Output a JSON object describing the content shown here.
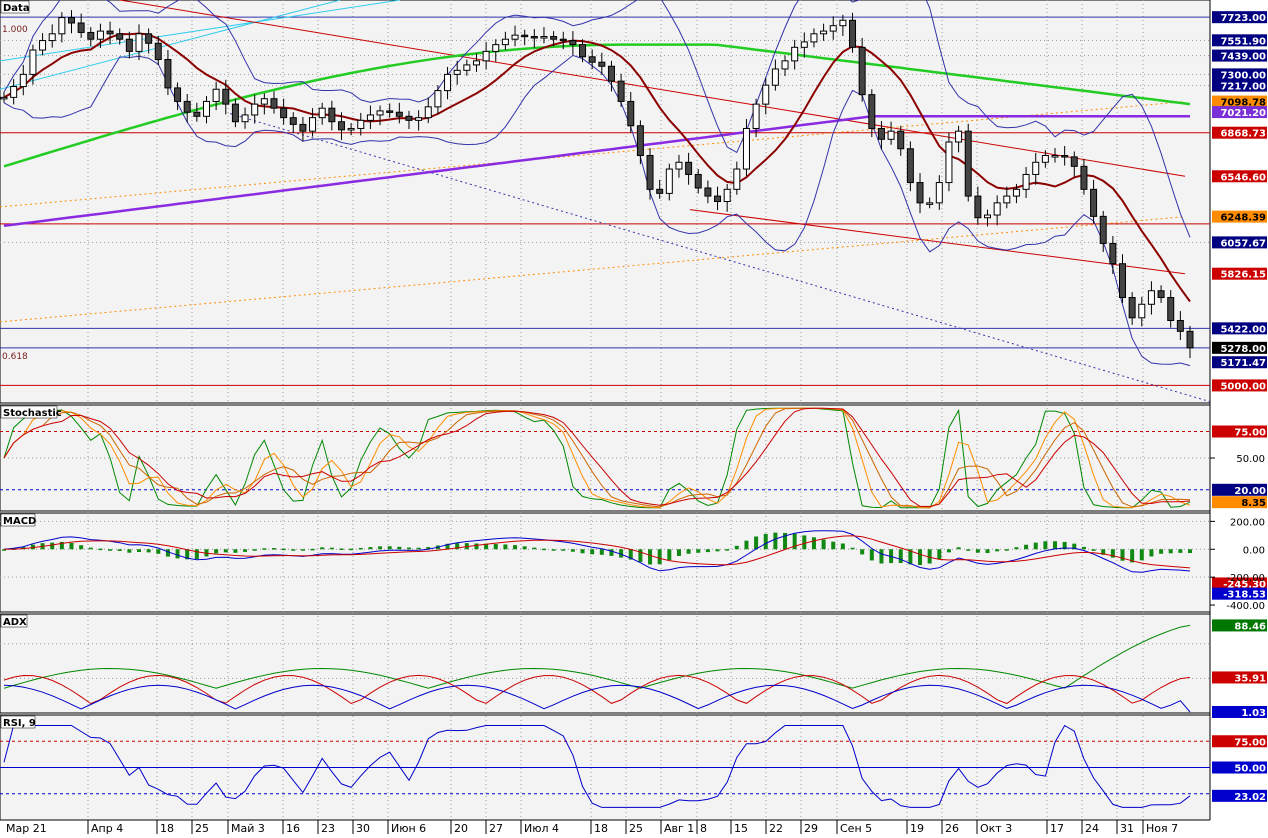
{
  "panels": {
    "price": {
      "label": "Data",
      "fib_top": "1.000",
      "fib_bottom": "0.618",
      "ylim": [
        4870,
        7850
      ],
      "tags": [
        {
          "text": "7723.00",
          "value": 7723,
          "bg": "#000080",
          "fg": "#ffffff"
        },
        {
          "text": "7551.90",
          "value": 7551.9,
          "bg": "#000080",
          "fg": "#ffffff"
        },
        {
          "text": "7439.00",
          "value": 7439,
          "bg": "#000080",
          "fg": "#ffffff"
        },
        {
          "text": "7300.00",
          "value": 7300,
          "bg": "#000080",
          "fg": "#ffffff"
        },
        {
          "text": "7217.00",
          "value": 7217,
          "bg": "#000080",
          "fg": "#ffffff"
        },
        {
          "text": "7098.78",
          "value": 7098.78,
          "bg": "#ff8c00",
          "fg": "#000000"
        },
        {
          "text": "7021.20",
          "value": 7021.2,
          "bg": "#7b2fd6",
          "fg": "#ffffff"
        },
        {
          "text": "6868.73",
          "value": 6868.73,
          "bg": "#cc0000",
          "fg": "#ffffff"
        },
        {
          "text": "6546.60",
          "value": 6546.6,
          "bg": "#cc0000",
          "fg": "#ffffff"
        },
        {
          "text": "6248.39",
          "value": 6248.39,
          "bg": "#ff8c00",
          "fg": "#000000"
        },
        {
          "text": "6057.67",
          "value": 6057.67,
          "bg": "#000080",
          "fg": "#ffffff"
        },
        {
          "text": "5826.15",
          "value": 5826.15,
          "bg": "#cc0000",
          "fg": "#ffffff"
        },
        {
          "text": "5422.00",
          "value": 5422,
          "bg": "#000080",
          "fg": "#ffffff"
        },
        {
          "text": "5278.00",
          "value": 5278,
          "bg": "#000000",
          "fg": "#ffffff"
        },
        {
          "text": "5171.47",
          "value": 5171.47,
          "bg": "#000080",
          "fg": "#ffffff"
        },
        {
          "text": "5000.00",
          "value": 5000,
          "bg": "#cc0000",
          "fg": "#ffffff"
        }
      ]
    },
    "stochastic": {
      "label": "Stochastic",
      "ylim": [
        0,
        100
      ],
      "levels": [
        75,
        20
      ],
      "scale_labels": [
        "50.00"
      ],
      "tags": [
        {
          "text": "75.00",
          "value": 75,
          "bg": "#cc0000",
          "fg": "#ffffff"
        },
        {
          "text": "20.00",
          "value": 20,
          "bg": "#000080",
          "fg": "#ffffff"
        },
        {
          "text": "8.35",
          "value": 8.35,
          "bg": "#ff8c00",
          "fg": "#000000"
        }
      ]
    },
    "macd": {
      "label": "MACD",
      "ylim": [
        -450,
        260
      ],
      "scale_labels": [
        "200.00",
        "0.00",
        "-200.00",
        "-400.00"
      ],
      "tags": [
        {
          "text": "-245.30",
          "value": -245.3,
          "bg": "#cc0000",
          "fg": "#ffffff"
        },
        {
          "text": "-318.53",
          "value": -318.53,
          "bg": "#0000cc",
          "fg": "#ffffff"
        }
      ]
    },
    "adx": {
      "label": "ADX",
      "ylim": [
        0,
        100
      ],
      "tags": [
        {
          "text": "88.46",
          "value": 88.46,
          "bg": "#007700",
          "fg": "#ffffff"
        },
        {
          "text": "35.91",
          "value": 35.91,
          "bg": "#cc0000",
          "fg": "#ffffff"
        },
        {
          "text": "1.03",
          "value": 1.03,
          "bg": "#0000cc",
          "fg": "#ffffff"
        }
      ]
    },
    "rsi": {
      "label": "RSI, 9",
      "ylim": [
        0,
        100
      ],
      "levels": [
        75,
        50,
        25
      ],
      "tags": [
        {
          "text": "75.00",
          "value": 75,
          "bg": "#cc0000",
          "fg": "#ffffff"
        },
        {
          "text": "50.00",
          "value": 50,
          "bg": "#0000cc",
          "fg": "#ffffff"
        },
        {
          "text": "23.02",
          "value": 23.02,
          "bg": "#0000cc",
          "fg": "#ffffff"
        }
      ]
    }
  },
  "x_axis": {
    "labels": [
      "Мар 21",
      "Апр 4",
      "18",
      "25",
      "Май 3",
      "16",
      "23",
      "30",
      "Июн 6",
      "20",
      "27",
      "Июл 4",
      "18",
      "25",
      "Авг 1",
      "8",
      "15",
      "22",
      "29",
      "Сен 5",
      "19",
      "26",
      "Окт 3",
      "17",
      "24",
      "31",
      "Ноя 7"
    ]
  },
  "chart_data": {
    "type": "candlestick",
    "indicators": [
      "Bollinger Bands",
      "Moving averages",
      "Stochastic",
      "MACD",
      "ADX",
      "RSI 9"
    ],
    "price_levels": [
      7723,
      7551.9,
      7439,
      7300,
      7217,
      7098.78,
      7021.2,
      6868.73,
      6546.6,
      6248.39,
      6057.67,
      5826.15,
      5422,
      5278,
      5171.47,
      5000
    ],
    "last_close": 5278,
    "stochastic_last": 8.35,
    "macd_last": [
      -245.3,
      -318.53
    ],
    "adx_last": [
      88.46,
      35.91,
      1.03
    ],
    "rsi_last": 23.02,
    "close_series": [
      7130,
      7210,
      7300,
      7480,
      7550,
      7600,
      7720,
      7680,
      7610,
      7560,
      7620,
      7600,
      7560,
      7470,
      7600,
      7530,
      7410,
      7200,
      7100,
      7020,
      6990,
      7100,
      7190,
      7080,
      6950,
      7000,
      7080,
      7120,
      7050,
      6980,
      6930,
      6880,
      6980,
      7050,
      6950,
      6890,
      6900,
      6960,
      7000,
      7030,
      7020,
      6990,
      6960,
      6980,
      7060,
      7180,
      7300,
      7330,
      7370,
      7400,
      7470,
      7520,
      7560,
      7590,
      7580,
      7570,
      7580,
      7560,
      7550,
      7520,
      7430,
      7390,
      7360,
      7250,
      7100,
      6920,
      6700,
      6450,
      6420,
      6600,
      6650,
      6560,
      6460,
      6400,
      6360,
      6450,
      6600,
      6900,
      7080,
      7220,
      7340,
      7400,
      7500,
      7540,
      7600,
      7620,
      7660,
      7700,
      7500,
      7150,
      6900,
      6820,
      6880,
      6750,
      6500,
      6350,
      6350,
      6500,
      6800,
      6880,
      6400,
      6240,
      6260,
      6350,
      6400,
      6450,
      6560,
      6650,
      6700,
      6700,
      6690,
      6620,
      6450,
      6250,
      6050,
      5900,
      5650,
      5500,
      5600,
      5700,
      5650,
      5480,
      5400,
      5278
    ]
  }
}
